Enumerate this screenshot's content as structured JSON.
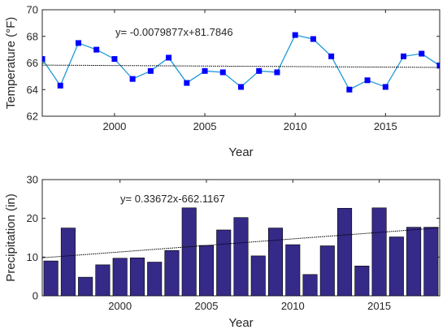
{
  "chart_data": [
    {
      "type": "line",
      "xlabel": "Year",
      "ylabel": "Temperature (°F)",
      "xlim": [
        1996,
        2018
      ],
      "ylim": [
        62,
        70
      ],
      "xticks": [
        "2000",
        "2005",
        "2010",
        "2015"
      ],
      "yticks": [
        "62",
        "64",
        "66",
        "68",
        "70"
      ],
      "equation": "y= -0.0079877x+81.7846",
      "trend": {
        "slope": -0.0079877,
        "intercept": 81.7846
      },
      "series": [
        {
          "color": "#1f9bd7",
          "marker_color": "#0000ff",
          "x": [
            1996,
            1997,
            1998,
            1999,
            2000,
            2001,
            2002,
            2003,
            2004,
            2005,
            2006,
            2007,
            2008,
            2009,
            2010,
            2011,
            2012,
            2013,
            2014,
            2015,
            2016,
            2017,
            2018
          ],
          "values": [
            66.3,
            64.3,
            67.5,
            67.0,
            66.3,
            64.8,
            65.4,
            66.4,
            64.5,
            65.4,
            65.3,
            64.2,
            65.4,
            65.3,
            68.1,
            67.8,
            66.5,
            64.0,
            64.7,
            64.2,
            66.5,
            66.7,
            65.8
          ]
        }
      ]
    },
    {
      "type": "bar",
      "xlabel": "Year",
      "ylabel": "Precipitation (in)",
      "xlim": [
        1995.5,
        2018.5
      ],
      "ylim": [
        0,
        30
      ],
      "xticks": [
        "2000",
        "2005",
        "2010",
        "2015"
      ],
      "yticks": [
        "0",
        "10",
        "20",
        "30"
      ],
      "equation": "y= 0.33672x-662.1167",
      "trend": {
        "slope": 0.33672,
        "intercept": -662.1167
      },
      "bar_color": "#352a87",
      "categories": [
        1996,
        1997,
        1998,
        1999,
        2000,
        2001,
        2002,
        2003,
        2004,
        2005,
        2006,
        2007,
        2008,
        2009,
        2010,
        2011,
        2012,
        2013,
        2014,
        2015,
        2016,
        2017,
        2018
      ],
      "values": [
        9.0,
        17.5,
        4.8,
        8.0,
        9.7,
        9.8,
        8.7,
        11.7,
        22.7,
        13.0,
        17.0,
        20.2,
        10.3,
        17.5,
        13.2,
        5.5,
        12.9,
        22.6,
        7.7,
        22.7,
        15.2,
        17.7,
        17.7
      ]
    }
  ]
}
